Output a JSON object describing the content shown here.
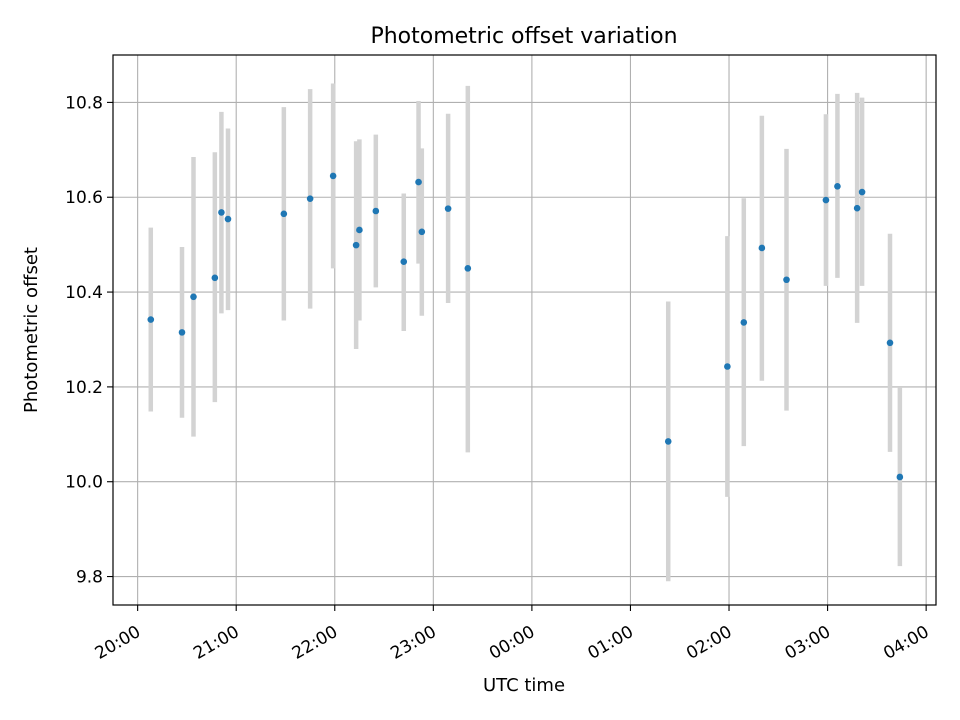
{
  "chart_data": {
    "type": "scatter",
    "title": "Photometric offset variation",
    "xlabel": "UTC time",
    "ylabel": "Photometric offset",
    "x_ticks": [
      "20:00",
      "21:00",
      "22:00",
      "23:00",
      "00:00",
      "01:00",
      "02:00",
      "03:00",
      "04:00"
    ],
    "y_ticks": [
      "9.8",
      "10.0",
      "10.2",
      "10.4",
      "10.6",
      "10.8"
    ],
    "x_range_hours": [
      19.75,
      28.1
    ],
    "ylim": [
      9.74,
      10.9
    ],
    "grid": true,
    "colors": {
      "point": "#1f77b4",
      "errorbar": "#d3d3d3",
      "grid": "#b0b0b0"
    },
    "points": [
      {
        "t": "20:08",
        "y": 10.342,
        "lo": 10.148,
        "hi": 10.536
      },
      {
        "t": "20:27",
        "y": 10.315,
        "lo": 10.135,
        "hi": 10.495
      },
      {
        "t": "20:34",
        "y": 10.39,
        "lo": 10.095,
        "hi": 10.685
      },
      {
        "t": "20:47",
        "y": 10.43,
        "lo": 10.168,
        "hi": 10.695
      },
      {
        "t": "20:51",
        "y": 10.568,
        "lo": 10.355,
        "hi": 10.78
      },
      {
        "t": "20:55",
        "y": 10.554,
        "lo": 10.362,
        "hi": 10.745
      },
      {
        "t": "21:29",
        "y": 10.565,
        "lo": 10.34,
        "hi": 10.79
      },
      {
        "t": "21:45",
        "y": 10.597,
        "lo": 10.365,
        "hi": 10.828
      },
      {
        "t": "21:59",
        "y": 10.645,
        "lo": 10.45,
        "hi": 10.84
      },
      {
        "t": "22:13",
        "y": 10.499,
        "lo": 10.28,
        "hi": 10.718
      },
      {
        "t": "22:15",
        "y": 10.531,
        "lo": 10.34,
        "hi": 10.722
      },
      {
        "t": "22:25",
        "y": 10.571,
        "lo": 10.41,
        "hi": 10.732
      },
      {
        "t": "22:42",
        "y": 10.464,
        "lo": 10.318,
        "hi": 10.608
      },
      {
        "t": "22:51",
        "y": 10.632,
        "lo": 10.46,
        "hi": 10.803
      },
      {
        "t": "22:53",
        "y": 10.527,
        "lo": 10.35,
        "hi": 10.703
      },
      {
        "t": "23:09",
        "y": 10.576,
        "lo": 10.377,
        "hi": 10.776
      },
      {
        "t": "23:21",
        "y": 10.45,
        "lo": 10.062,
        "hi": 10.835
      },
      {
        "t": "01:23",
        "y": 10.085,
        "lo": 9.79,
        "hi": 10.38
      },
      {
        "t": "01:59",
        "y": 10.243,
        "lo": 9.968,
        "hi": 10.518
      },
      {
        "t": "02:09",
        "y": 10.336,
        "lo": 10.075,
        "hi": 10.598
      },
      {
        "t": "02:20",
        "y": 10.493,
        "lo": 10.213,
        "hi": 10.772
      },
      {
        "t": "02:35",
        "y": 10.426,
        "lo": 10.15,
        "hi": 10.702
      },
      {
        "t": "02:59",
        "y": 10.594,
        "lo": 10.413,
        "hi": 10.775
      },
      {
        "t": "03:06",
        "y": 10.623,
        "lo": 10.43,
        "hi": 10.818
      },
      {
        "t": "03:18",
        "y": 10.577,
        "lo": 10.335,
        "hi": 10.82
      },
      {
        "t": "03:21",
        "y": 10.611,
        "lo": 10.413,
        "hi": 10.81
      },
      {
        "t": "03:38",
        "y": 10.293,
        "lo": 10.063,
        "hi": 10.523
      },
      {
        "t": "03:44",
        "y": 10.01,
        "lo": 9.822,
        "hi": 10.198
      }
    ]
  }
}
